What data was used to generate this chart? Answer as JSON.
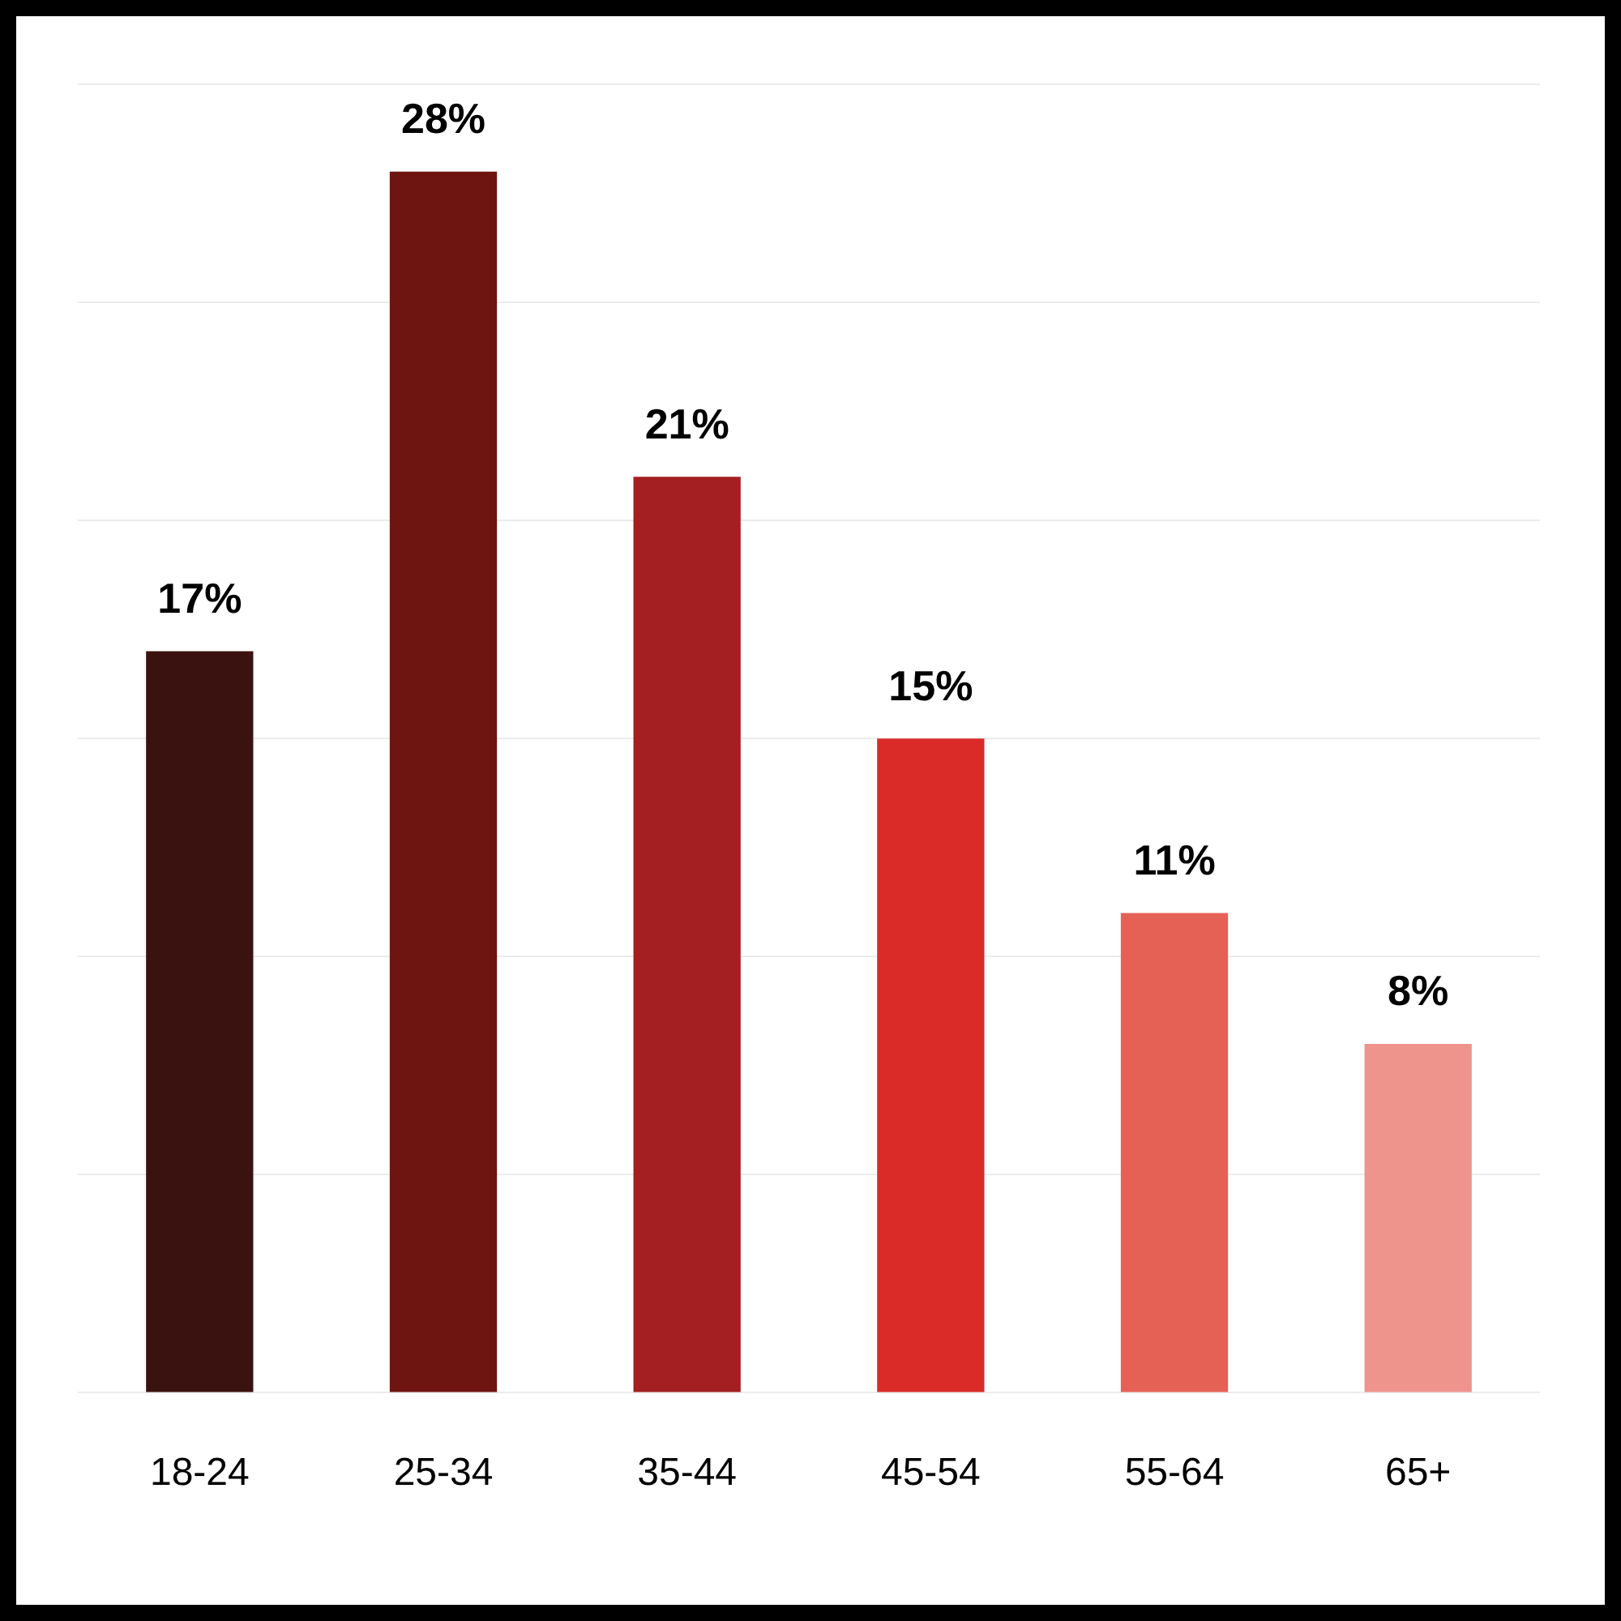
{
  "chart_data": {
    "type": "bar",
    "categories": [
      "18-24",
      "25-34",
      "35-44",
      "45-54",
      "55-64",
      "65+"
    ],
    "values": [
      17,
      28,
      21,
      15,
      11,
      8
    ],
    "colors": [
      "#3a1210",
      "#6e1512",
      "#a31f22",
      "#db2b28",
      "#e56155",
      "#ee948d"
    ],
    "value_labels": [
      "17%",
      "28%",
      "21%",
      "15%",
      "11%",
      "8%"
    ],
    "ylim": [
      0,
      30
    ],
    "yticks": [
      {
        "value": 0,
        "label": null
      },
      {
        "value": 5,
        "label": null
      },
      {
        "value": 10,
        "label": null
      },
      {
        "value": 15,
        "label": null
      },
      {
        "value": 20,
        "label": null
      },
      {
        "value": 25,
        "label": null
      },
      {
        "value": 30,
        "label": null
      }
    ],
    "grid": "y",
    "tick_labels": "x",
    "legend": false
  }
}
